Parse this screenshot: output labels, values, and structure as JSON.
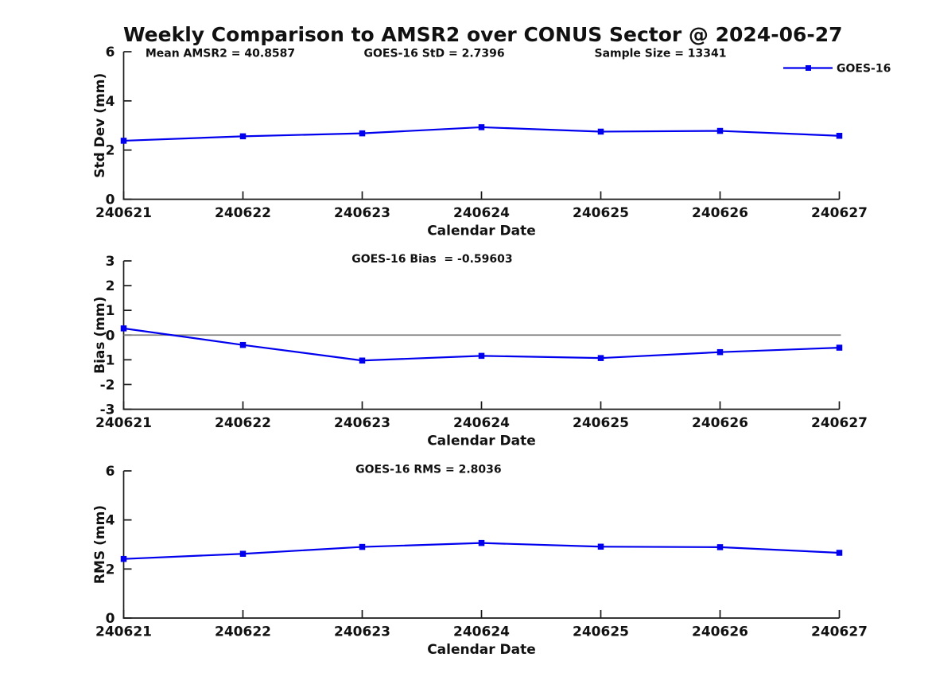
{
  "title": "Weekly Comparison to AMSR2 over CONUS Sector @ 2024-06-27",
  "colors": {
    "series_line": "#0000ee",
    "series_marker": "#0000ee",
    "axis": "#1a1a1a",
    "text": "#111111",
    "zero_line": "#808080",
    "background": "#ffffff"
  },
  "legend": {
    "label": "GOES-16",
    "position": "top-right",
    "marker": "filled-square"
  },
  "x_axis": {
    "label": "Calendar Date",
    "categories": [
      "240621",
      "240622",
      "240623",
      "240624",
      "240625",
      "240626",
      "240627"
    ]
  },
  "chart_data": [
    {
      "type": "line",
      "name": "std-dev",
      "annotations": [
        "Mean AMSR2 = 40.8587",
        "GOES-16 StD = 2.7396",
        "Sample Size = 13341"
      ],
      "categories": [
        "240621",
        "240622",
        "240623",
        "240624",
        "240625",
        "240626",
        "240627"
      ],
      "series": [
        {
          "name": "GOES-16",
          "marker": "square",
          "values": [
            2.38,
            2.56,
            2.68,
            2.93,
            2.75,
            2.78,
            2.58
          ]
        }
      ],
      "xlabel": "Calendar Date",
      "ylabel": "Std Dev (mm)",
      "ylim": [
        0,
        6
      ],
      "yticks": [
        0,
        2,
        4,
        6
      ],
      "grid": false,
      "zero_line": false,
      "legend_visible": true
    },
    {
      "type": "line",
      "name": "bias",
      "annotations": [
        "GOES-16 Bias  = -0.59603"
      ],
      "categories": [
        "240621",
        "240622",
        "240623",
        "240624",
        "240625",
        "240626",
        "240627"
      ],
      "series": [
        {
          "name": "GOES-16",
          "marker": "square",
          "values": [
            0.27,
            -0.4,
            -1.03,
            -0.84,
            -0.93,
            -0.69,
            -0.51
          ]
        }
      ],
      "xlabel": "Calendar Date",
      "ylabel": "Bias (mm)",
      "ylim": [
        -3,
        3
      ],
      "yticks": [
        -3,
        -2,
        -1,
        0,
        1,
        2,
        3
      ],
      "grid": false,
      "zero_line": true,
      "legend_visible": false
    },
    {
      "type": "line",
      "name": "rms",
      "annotations": [
        "GOES-16 RMS = 2.8036"
      ],
      "categories": [
        "240621",
        "240622",
        "240623",
        "240624",
        "240625",
        "240626",
        "240627"
      ],
      "series": [
        {
          "name": "GOES-16",
          "marker": "square",
          "values": [
            2.41,
            2.62,
            2.9,
            3.06,
            2.91,
            2.89,
            2.66
          ]
        }
      ],
      "xlabel": "Calendar Date",
      "ylabel": "RMS (mm)",
      "ylim": [
        0,
        6
      ],
      "yticks": [
        0,
        2,
        4,
        6
      ],
      "grid": false,
      "zero_line": false,
      "legend_visible": false
    }
  ]
}
